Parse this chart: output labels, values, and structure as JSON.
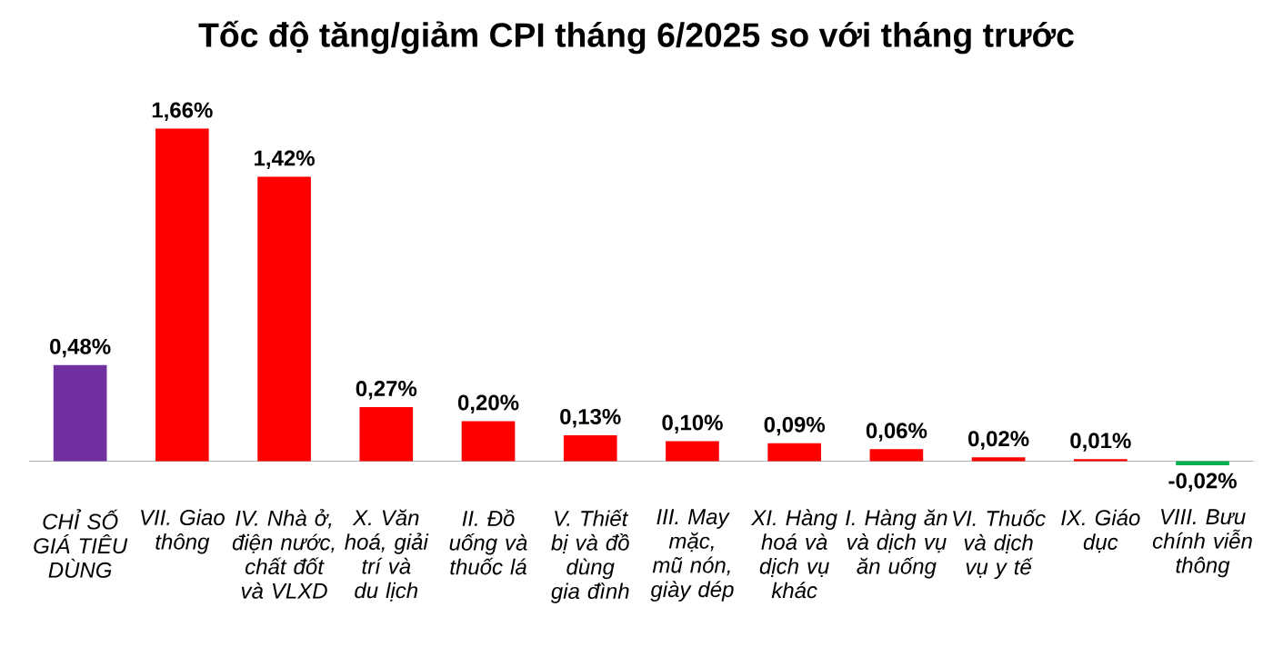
{
  "chart_data": {
    "type": "bar",
    "title": "Tốc độ tăng/giảm CPI tháng 6/2025 so với tháng trước",
    "categories": [
      "CHỈ SỐ GIÁ TIÊU DÙNG",
      "VII. Giao thông",
      "IV. Nhà ở, điện nước, chất đốt và VLXD",
      "X. Văn hoá, giải trí và du lịch",
      "II. Đồ uống và thuốc lá",
      "V. Thiết bị và đồ dùng gia đình",
      "III. May mặc, mũ nón, giày dép",
      "XI. Hàng hoá và dịch vụ khác",
      "I. Hàng ăn và dịch vụ ăn uống",
      "VI. Thuốc và dịch vụ y tế",
      "IX. Giáo dục",
      "VIII. Bưu chính viễn thông"
    ],
    "values": [
      0.48,
      1.66,
      1.42,
      0.27,
      0.2,
      0.13,
      0.1,
      0.09,
      0.06,
      0.02,
      0.01,
      -0.02
    ],
    "value_labels": [
      "0,48%",
      "1,66%",
      "1,42%",
      "0,27%",
      "0,20%",
      "0,13%",
      "0,10%",
      "0,09%",
      "0,06%",
      "0,02%",
      "0,01%",
      "-0,02%"
    ],
    "colors": [
      "#7030a0",
      "#ff0000",
      "#ff0000",
      "#ff0000",
      "#ff0000",
      "#ff0000",
      "#ff0000",
      "#ff0000",
      "#ff0000",
      "#ff0000",
      "#ff0000",
      "#00b050"
    ],
    "tick_labels": "x"
  }
}
